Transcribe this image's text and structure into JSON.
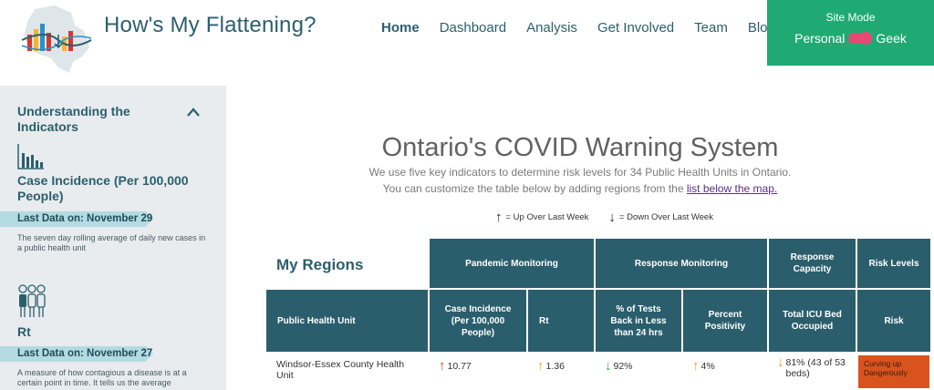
{
  "brand": {
    "title": "How's My Flattening?"
  },
  "nav": [
    {
      "label": "Home",
      "active": true
    },
    {
      "label": "Dashboard"
    },
    {
      "label": "Analysis"
    },
    {
      "label": "Get Involved"
    },
    {
      "label": "Team"
    },
    {
      "label": "Blog"
    }
  ],
  "site_mode": {
    "title": "Site Mode",
    "option_left": "Personal",
    "option_right": "Geek",
    "accent": "#1faa74",
    "toggle_color": "#e84a76"
  },
  "sidebar": {
    "heading": "Understanding the Indicators",
    "indicators": [
      {
        "icon": "bar-chart-icon",
        "title": "Case Incidence (Per 100,000 People)",
        "last_data": "Last Data on: November 29",
        "description": "The seven day rolling average of daily new cases in a public health unit"
      },
      {
        "icon": "people-icon",
        "title": "Rt",
        "last_data": "Last Data on: November 27",
        "description": "A measure of how contagious a disease is at a certain point in time. It tells us the average"
      }
    ]
  },
  "main": {
    "title": "Ontario's COVID Warning System",
    "line1": "We use five key indicators to determine risk levels for 34 Public Health Units in Ontario.",
    "line2_prefix": "You can customize the table below by adding regions from the ",
    "line2_link": "list below the map.",
    "legend_up": "= Up Over Last Week",
    "legend_down": "= Down Over Last Week",
    "my_regions": "My Regions"
  },
  "table": {
    "groups": {
      "pandemic": "Pandemic Monitoring",
      "response": "Response Monitoring",
      "capacity": "Response Capacity",
      "risk": "Risk Levels"
    },
    "columns": {
      "phu": "Public Health Unit",
      "incidence": "Case Incidence (Per 100,000 People)",
      "rt": "Rt",
      "tests": "% of Tests Back in Less than 24 hrs",
      "positivity": "Percent Positivity",
      "icu": "Total ICU Bed Occupied",
      "risk": "Risk"
    },
    "rows": [
      {
        "phu": "Windsor-Essex County Health Unit",
        "incidence": "10.77",
        "rt": "1.36",
        "tests": "92%",
        "positivity": "4%",
        "icu": "81% (43 of 53 beds)",
        "risk": "Curving up Dangerously"
      }
    ]
  },
  "colors": {
    "header_teal": "#2b5e6c",
    "up_red": "#d9431c",
    "up_orange": "#f0a030",
    "down_green": "#3a9a50",
    "risk_orange": "#d9531e"
  }
}
